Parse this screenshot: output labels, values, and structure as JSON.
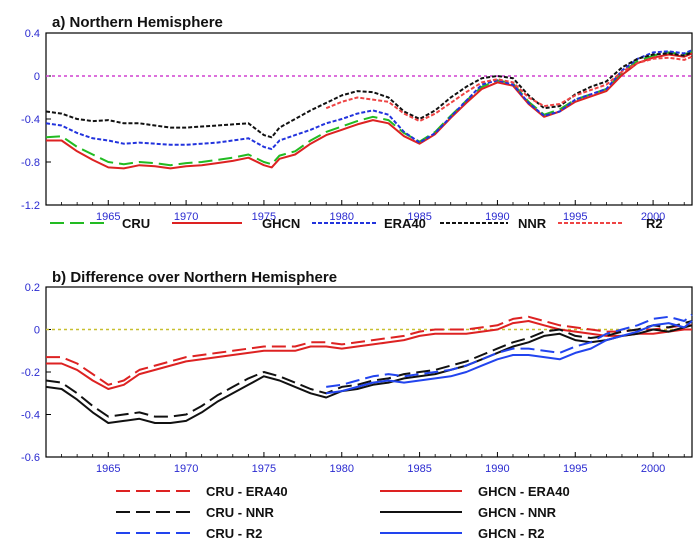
{
  "chart_data": [
    {
      "type": "line",
      "title": "a) Northern Hemisphere",
      "xlim": [
        1961,
        2002.5
      ],
      "ylim": [
        -1.2,
        0.4
      ],
      "xticks": [
        "1965",
        "1970",
        "1975",
        "1980",
        "1985",
        "1990",
        "1995",
        "2000"
      ],
      "yticks": [
        "0.4",
        "0",
        "-0.4",
        "-0.8",
        "-1.2"
      ],
      "zero_line_color": "#d040d0",
      "legend_placement": "bottom",
      "series": [
        {
          "name": "CRU",
          "color": "#22bb22",
          "style": "long-dash",
          "x": [
            1961,
            1962,
            1963,
            1964,
            1965,
            1966,
            1967,
            1968,
            1969,
            1970,
            1971,
            1972,
            1973,
            1974,
            1975,
            1975.5,
            1976,
            1977,
            1978,
            1979,
            1980,
            1981,
            1982,
            1983,
            1984,
            1985,
            1986,
            1987,
            1988,
            1989,
            1990,
            1991,
            1992,
            1993,
            1994,
            1995,
            1996,
            1997,
            1998,
            1999,
            2000,
            2001,
            2002,
            2002.5
          ],
          "y": [
            -0.57,
            -0.56,
            -0.66,
            -0.73,
            -0.8,
            -0.82,
            -0.8,
            -0.81,
            -0.83,
            -0.81,
            -0.8,
            -0.78,
            -0.76,
            -0.73,
            -0.8,
            -0.82,
            -0.74,
            -0.7,
            -0.6,
            -0.52,
            -0.47,
            -0.42,
            -0.38,
            -0.41,
            -0.53,
            -0.61,
            -0.52,
            -0.37,
            -0.23,
            -0.1,
            -0.04,
            -0.07,
            -0.24,
            -0.36,
            -0.31,
            -0.22,
            -0.17,
            -0.12,
            0.03,
            0.14,
            0.19,
            0.22,
            0.2,
            0.23
          ]
        },
        {
          "name": "GHCN",
          "color": "#dd2222",
          "style": "solid",
          "x": [
            1961,
            1962,
            1963,
            1964,
            1965,
            1966,
            1967,
            1968,
            1969,
            1970,
            1971,
            1972,
            1973,
            1974,
            1975,
            1975.5,
            1976,
            1977,
            1978,
            1979,
            1980,
            1981,
            1982,
            1983,
            1984,
            1985,
            1986,
            1987,
            1988,
            1989,
            1990,
            1991,
            1992,
            1993,
            1994,
            1995,
            1996,
            1997,
            1998,
            1999,
            2000,
            2001,
            2002,
            2002.5
          ],
          "y": [
            -0.6,
            -0.6,
            -0.7,
            -0.78,
            -0.85,
            -0.86,
            -0.83,
            -0.84,
            -0.86,
            -0.84,
            -0.83,
            -0.81,
            -0.79,
            -0.76,
            -0.83,
            -0.85,
            -0.77,
            -0.73,
            -0.63,
            -0.55,
            -0.5,
            -0.45,
            -0.41,
            -0.44,
            -0.56,
            -0.63,
            -0.54,
            -0.39,
            -0.25,
            -0.12,
            -0.06,
            -0.09,
            -0.26,
            -0.38,
            -0.33,
            -0.24,
            -0.19,
            -0.14,
            0.01,
            0.12,
            0.17,
            0.2,
            0.18,
            0.21
          ]
        },
        {
          "name": "ERA40",
          "color": "#2233dd",
          "style": "dashed",
          "x": [
            1961,
            1962,
            1963,
            1964,
            1965,
            1966,
            1967,
            1968,
            1969,
            1970,
            1971,
            1972,
            1973,
            1974,
            1975,
            1975.5,
            1976,
            1977,
            1978,
            1979,
            1980,
            1981,
            1982,
            1983,
            1984,
            1985,
            1986,
            1987,
            1988,
            1989,
            1990,
            1991,
            1992,
            1993,
            1994,
            1995,
            1996,
            1997,
            1998,
            1999,
            2000,
            2001,
            2002,
            2002.5
          ],
          "y": [
            -0.44,
            -0.46,
            -0.53,
            -0.58,
            -0.6,
            -0.63,
            -0.62,
            -0.63,
            -0.64,
            -0.64,
            -0.63,
            -0.62,
            -0.6,
            -0.58,
            -0.66,
            -0.68,
            -0.6,
            -0.55,
            -0.5,
            -0.44,
            -0.4,
            -0.35,
            -0.32,
            -0.36,
            -0.52,
            -0.62,
            -0.53,
            -0.38,
            -0.23,
            -0.08,
            -0.04,
            -0.08,
            -0.25,
            -0.37,
            -0.33,
            -0.22,
            -0.17,
            -0.12,
            0.05,
            0.16,
            0.22,
            0.23,
            0.21,
            0.24
          ]
        },
        {
          "name": "NNR",
          "color": "#111111",
          "style": "dashed",
          "x": [
            1961,
            1962,
            1963,
            1964,
            1965,
            1966,
            1967,
            1968,
            1969,
            1970,
            1971,
            1972,
            1973,
            1974,
            1975,
            1975.5,
            1976,
            1977,
            1978,
            1979,
            1980,
            1981,
            1982,
            1983,
            1984,
            1985,
            1986,
            1987,
            1988,
            1989,
            1990,
            1991,
            1992,
            1993,
            1994,
            1995,
            1996,
            1997,
            1998,
            1999,
            2000,
            2001,
            2002,
            2002.5
          ],
          "y": [
            -0.33,
            -0.35,
            -0.4,
            -0.42,
            -0.41,
            -0.44,
            -0.44,
            -0.46,
            -0.48,
            -0.48,
            -0.47,
            -0.46,
            -0.45,
            -0.44,
            -0.55,
            -0.57,
            -0.48,
            -0.4,
            -0.32,
            -0.25,
            -0.18,
            -0.14,
            -0.15,
            -0.2,
            -0.33,
            -0.4,
            -0.32,
            -0.2,
            -0.1,
            -0.02,
            0.0,
            -0.02,
            -0.18,
            -0.3,
            -0.28,
            -0.17,
            -0.1,
            -0.05,
            0.08,
            0.16,
            0.2,
            0.21,
            0.19,
            0.22
          ]
        },
        {
          "name": "R2",
          "color": "#ee4444",
          "style": "dashed",
          "x": [
            1979,
            1980,
            1981,
            1982,
            1983,
            1984,
            1985,
            1986,
            1987,
            1988,
            1989,
            1990,
            1991,
            1992,
            1993,
            1994,
            1995,
            1996,
            1997,
            1998,
            1999,
            2000,
            2001,
            2002,
            2002.5
          ],
          "y": [
            -0.3,
            -0.24,
            -0.2,
            -0.22,
            -0.24,
            -0.35,
            -0.42,
            -0.35,
            -0.25,
            -0.15,
            -0.06,
            -0.03,
            -0.06,
            -0.2,
            -0.28,
            -0.26,
            -0.18,
            -0.13,
            -0.08,
            0.04,
            0.12,
            0.16,
            0.17,
            0.15,
            0.18
          ]
        }
      ],
      "legend": [
        {
          "label": "CRU",
          "color": "#22bb22",
          "style": "long-dash"
        },
        {
          "label": "GHCN",
          "color": "#dd2222",
          "style": "solid"
        },
        {
          "label": "ERA40",
          "color": "#2233dd",
          "style": "dashed"
        },
        {
          "label": "NNR",
          "color": "#111111",
          "style": "dashed"
        },
        {
          "label": "R2",
          "color": "#ee4444",
          "style": "dashed"
        }
      ]
    },
    {
      "type": "line",
      "title": "b) Difference over Northern Hemisphere",
      "xlim": [
        1961,
        2002.5
      ],
      "ylim": [
        -0.6,
        0.2
      ],
      "xticks": [
        "1965",
        "1970",
        "1975",
        "1980",
        "1985",
        "1990",
        "1995",
        "2000"
      ],
      "yticks": [
        "0.2",
        "0",
        "-0.2",
        "-0.4",
        "-0.6"
      ],
      "zero_line_color": "#c8c030",
      "legend_placement": "bottom",
      "series": [
        {
          "name": "CRU - ERA40",
          "color": "#dd2222",
          "style": "long-dash",
          "x": [
            1961,
            1962,
            1963,
            1964,
            1965,
            1966,
            1967,
            1968,
            1969,
            1970,
            1971,
            1972,
            1973,
            1974,
            1975,
            1976,
            1977,
            1978,
            1979,
            1980,
            1981,
            1982,
            1983,
            1984,
            1985,
            1986,
            1987,
            1988,
            1989,
            1990,
            1991,
            1992,
            1993,
            1994,
            1995,
            1996,
            1997,
            1998,
            1999,
            2000,
            2001,
            2002,
            2002.5
          ],
          "y": [
            -0.13,
            -0.13,
            -0.16,
            -0.21,
            -0.26,
            -0.24,
            -0.19,
            -0.17,
            -0.15,
            -0.13,
            -0.12,
            -0.11,
            -0.1,
            -0.09,
            -0.08,
            -0.08,
            -0.08,
            -0.06,
            -0.06,
            -0.07,
            -0.06,
            -0.05,
            -0.04,
            -0.03,
            -0.01,
            0.0,
            0.0,
            0.0,
            0.01,
            0.02,
            0.05,
            0.06,
            0.04,
            0.02,
            0.01,
            0.0,
            -0.01,
            -0.01,
            0.0,
            0.0,
            0.01,
            0.02,
            0.02
          ]
        },
        {
          "name": "GHCN - ERA40",
          "color": "#dd2222",
          "style": "solid",
          "x": [
            1961,
            1962,
            1963,
            1964,
            1965,
            1966,
            1967,
            1968,
            1969,
            1970,
            1971,
            1972,
            1973,
            1974,
            1975,
            1976,
            1977,
            1978,
            1979,
            1980,
            1981,
            1982,
            1983,
            1984,
            1985,
            1986,
            1987,
            1988,
            1989,
            1990,
            1991,
            1992,
            1993,
            1994,
            1995,
            1996,
            1997,
            1998,
            1999,
            2000,
            2001,
            2002,
            2002.5
          ],
          "y": [
            -0.16,
            -0.16,
            -0.19,
            -0.24,
            -0.28,
            -0.26,
            -0.21,
            -0.19,
            -0.17,
            -0.15,
            -0.14,
            -0.13,
            -0.12,
            -0.11,
            -0.1,
            -0.1,
            -0.1,
            -0.08,
            -0.08,
            -0.09,
            -0.08,
            -0.07,
            -0.06,
            -0.05,
            -0.03,
            -0.02,
            -0.02,
            -0.02,
            -0.01,
            0.0,
            0.03,
            0.04,
            0.02,
            0.0,
            -0.01,
            -0.02,
            -0.03,
            -0.03,
            -0.02,
            -0.02,
            -0.01,
            0.0,
            0.0
          ]
        },
        {
          "name": "CRU - NNR",
          "color": "#111111",
          "style": "long-dash",
          "x": [
            1961,
            1962,
            1963,
            1964,
            1965,
            1966,
            1967,
            1968,
            1969,
            1970,
            1971,
            1972,
            1973,
            1974,
            1975,
            1976,
            1977,
            1978,
            1979,
            1980,
            1981,
            1982,
            1983,
            1984,
            1985,
            1986,
            1987,
            1988,
            1989,
            1990,
            1991,
            1992,
            1993,
            1994,
            1995,
            1996,
            1997,
            1998,
            1999,
            2000,
            2001,
            2002,
            2002.5
          ],
          "y": [
            -0.24,
            -0.25,
            -0.3,
            -0.36,
            -0.41,
            -0.4,
            -0.39,
            -0.41,
            -0.41,
            -0.4,
            -0.36,
            -0.31,
            -0.27,
            -0.23,
            -0.2,
            -0.22,
            -0.25,
            -0.28,
            -0.3,
            -0.27,
            -0.26,
            -0.24,
            -0.23,
            -0.21,
            -0.2,
            -0.19,
            -0.17,
            -0.15,
            -0.12,
            -0.09,
            -0.06,
            -0.04,
            -0.01,
            0.0,
            -0.03,
            -0.04,
            -0.03,
            -0.01,
            0.0,
            0.02,
            0.01,
            0.03,
            0.04
          ]
        },
        {
          "name": "GHCN - NNR",
          "color": "#111111",
          "style": "solid",
          "x": [
            1961,
            1962,
            1963,
            1964,
            1965,
            1966,
            1967,
            1968,
            1969,
            1970,
            1971,
            1972,
            1973,
            1974,
            1975,
            1976,
            1977,
            1978,
            1979,
            1980,
            1981,
            1982,
            1983,
            1984,
            1985,
            1986,
            1987,
            1988,
            1989,
            1990,
            1991,
            1992,
            1993,
            1994,
            1995,
            1996,
            1997,
            1998,
            1999,
            2000,
            2001,
            2002,
            2002.5
          ],
          "y": [
            -0.27,
            -0.28,
            -0.33,
            -0.39,
            -0.44,
            -0.43,
            -0.42,
            -0.44,
            -0.44,
            -0.43,
            -0.39,
            -0.34,
            -0.3,
            -0.26,
            -0.22,
            -0.24,
            -0.27,
            -0.3,
            -0.32,
            -0.29,
            -0.28,
            -0.26,
            -0.25,
            -0.23,
            -0.22,
            -0.21,
            -0.19,
            -0.17,
            -0.14,
            -0.11,
            -0.08,
            -0.06,
            -0.03,
            -0.02,
            -0.05,
            -0.06,
            -0.05,
            -0.03,
            -0.02,
            0.0,
            -0.01,
            0.01,
            0.02
          ]
        },
        {
          "name": "CRU - R2",
          "color": "#2244ee",
          "style": "long-dash",
          "x": [
            1979,
            1980,
            1981,
            1982,
            1983,
            1984,
            1985,
            1986,
            1987,
            1988,
            1989,
            1990,
            1991,
            1992,
            1993,
            1994,
            1995,
            1996,
            1997,
            1998,
            1999,
            2000,
            2001,
            2002,
            2002.5
          ],
          "y": [
            -0.27,
            -0.26,
            -0.24,
            -0.22,
            -0.21,
            -0.22,
            -0.21,
            -0.2,
            -0.19,
            -0.17,
            -0.14,
            -0.11,
            -0.09,
            -0.09,
            -0.1,
            -0.11,
            -0.08,
            -0.06,
            -0.02,
            0.0,
            0.02,
            0.05,
            0.06,
            0.04,
            0.07
          ]
        },
        {
          "name": "GHCN - R2",
          "color": "#2244ee",
          "style": "solid",
          "x": [
            1979,
            1980,
            1981,
            1982,
            1983,
            1984,
            1985,
            1986,
            1987,
            1988,
            1989,
            1990,
            1991,
            1992,
            1993,
            1994,
            1995,
            1996,
            1997,
            1998,
            1999,
            2000,
            2001,
            2002,
            2002.5
          ],
          "y": [
            -0.3,
            -0.29,
            -0.27,
            -0.25,
            -0.24,
            -0.25,
            -0.24,
            -0.23,
            -0.22,
            -0.2,
            -0.17,
            -0.14,
            -0.12,
            -0.12,
            -0.13,
            -0.14,
            -0.11,
            -0.09,
            -0.05,
            -0.03,
            -0.01,
            0.02,
            0.03,
            0.01,
            0.04
          ]
        }
      ],
      "legend": [
        {
          "label": "CRU  -  ERA40",
          "color": "#dd2222",
          "style": "long-dash"
        },
        {
          "label": "GHCN  -  ERA40",
          "color": "#dd2222",
          "style": "solid"
        },
        {
          "label": "CRU  -  NNR",
          "color": "#111111",
          "style": "long-dash"
        },
        {
          "label": "GHCN  -  NNR",
          "color": "#111111",
          "style": "solid"
        },
        {
          "label": "CRU  -  R2",
          "color": "#2244ee",
          "style": "long-dash"
        },
        {
          "label": "GHCN  -  R2",
          "color": "#2244ee",
          "style": "solid"
        }
      ]
    }
  ]
}
